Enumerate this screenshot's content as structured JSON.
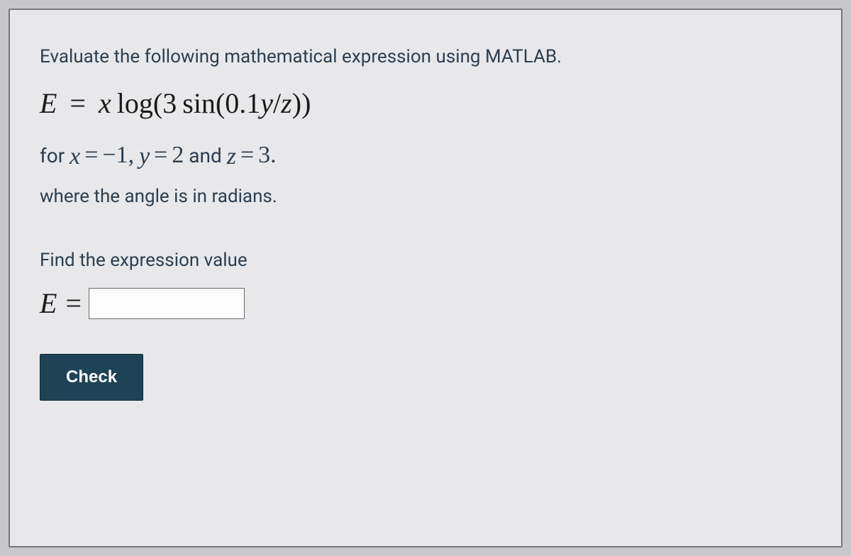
{
  "question": {
    "intro_text": "Evaluate the following mathematical expression using MATLAB.",
    "equation": {
      "lhs_var": "E",
      "eq_sign": "=",
      "x_var": "x",
      "func1": "log",
      "open1": "(",
      "coef": "3",
      "func2": "sin",
      "open2": "(",
      "numer_coef": "0.1",
      "y_var": "y",
      "slash": "/",
      "z_var": "z",
      "close2": ")",
      "close1": ")"
    },
    "given": {
      "for_word": "for ",
      "x_var": "x",
      "eq": "=",
      "x_val": "−1",
      "comma": ",",
      "y_var": "y",
      "y_val": "2",
      "and_word": " and ",
      "z_var": "z",
      "z_val": "3",
      "period": "."
    },
    "note_text": "where the angle is in radians.",
    "find_text": "Find the expression value",
    "answer": {
      "label": "E",
      "eq": "=",
      "value": "",
      "placeholder": ""
    },
    "check_button_label": "Check"
  },
  "colors": {
    "card_bg": "#e8e8ea",
    "card_border": "#78787c",
    "text": "#2c3e50",
    "math_text": "#1a1a1a",
    "button_bg": "#1f4356",
    "button_text": "#ffffff",
    "input_border": "#6a6a6e",
    "input_bg": "#fcfcfc"
  }
}
